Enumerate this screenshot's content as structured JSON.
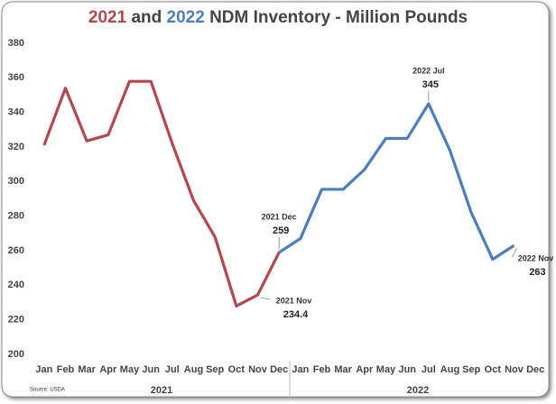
{
  "chart_data": {
    "type": "line",
    "title_parts": [
      "2021",
      "and",
      "2022",
      "NDM Inventory - Million Pounds"
    ],
    "title_colors": [
      "#b5474b",
      "#444444",
      "#4a7fbf",
      "#444444"
    ],
    "categories": [
      "Jan",
      "Feb",
      "Mar",
      "Apr",
      "May",
      "Jun",
      "Jul",
      "Aug",
      "Sep",
      "Oct",
      "Nov",
      "Dec",
      "Jan",
      "Feb",
      "Mar",
      "Apr",
      "May",
      "Jun",
      "Jul",
      "Aug",
      "Sep",
      "Oct",
      "Nov",
      "Dec"
    ],
    "groups": [
      "2021",
      "2022"
    ],
    "series": [
      {
        "color": "#b5474b",
        "values": [
          321,
          354,
          323.5,
          327,
          358,
          358,
          322,
          289,
          268,
          228,
          234.4,
          259,
          null,
          null,
          null,
          null,
          null,
          null,
          null,
          null,
          null,
          null,
          null,
          null
        ]
      },
      {
        "color": "#4a7fbf",
        "values": [
          null,
          null,
          null,
          null,
          null,
          null,
          null,
          null,
          null,
          null,
          null,
          null,
          267,
          295.5,
          295.5,
          307,
          325,
          325,
          345,
          318,
          282,
          255,
          263,
          null
        ]
      }
    ],
    "annotations": [
      "2021 Dec",
      "2021 Nov",
      "2022 Jul",
      "2022 Nov"
    ],
    "ylim": [
      200,
      380
    ],
    "yticks": [
      200,
      220,
      240,
      260,
      280,
      300,
      320,
      340,
      360,
      380
    ],
    "grid": false,
    "source": "Source: USDA"
  }
}
